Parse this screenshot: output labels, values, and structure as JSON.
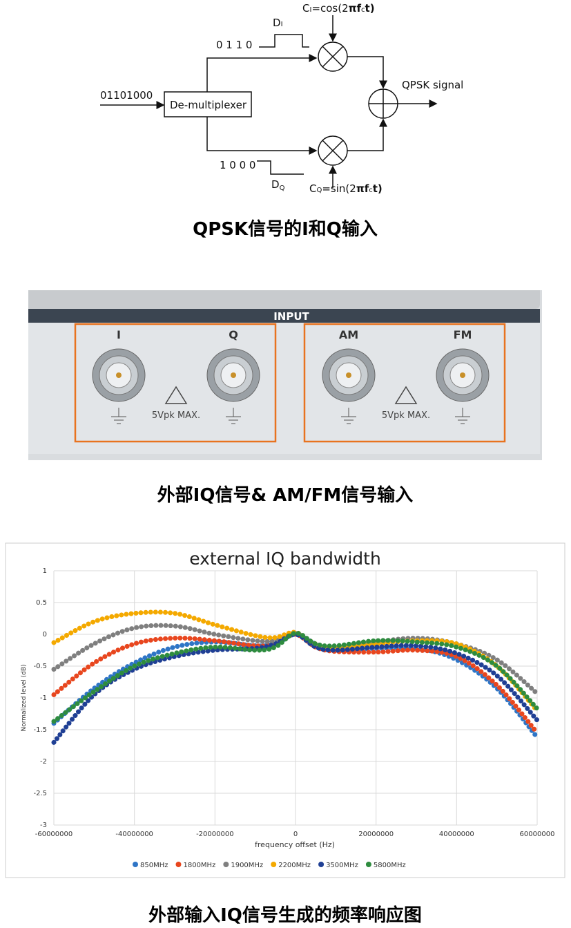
{
  "diagram": {
    "input_bits": "01101000",
    "demux": "De-multiplexer",
    "i_bits": "0 1 1 0",
    "q_bits": "1 0 0 0",
    "di": [
      "D",
      "I"
    ],
    "dq": [
      "D",
      "Q"
    ],
    "ci": [
      "C",
      "I",
      "=cos(2",
      "π",
      "f",
      "c",
      "t)"
    ],
    "cq": [
      "C",
      "Q",
      "=sin(2",
      "π",
      "f",
      "c",
      "t)"
    ],
    "output": "QPSK signal",
    "caption": "QPSK信号的I和Q输入"
  },
  "panel": {
    "header": "INPUT",
    "labels": [
      "I",
      "Q",
      "AM",
      "FM"
    ],
    "warnings": [
      "5Vpk  MAX.",
      "5Vpk  MAX."
    ],
    "caption": "外部IQ信号& AM/FM信号输入"
  },
  "chart_data": {
    "type": "line",
    "title": "external IQ bandwidth",
    "x_label": "frequency offset (Hz)",
    "y_label": "Normalized level (dB)",
    "x": [
      -60000000,
      -50000000,
      -40000000,
      -30000000,
      -20000000,
      -10000000,
      -5000000,
      0,
      5000000,
      10000000,
      20000000,
      30000000,
      40000000,
      50000000,
      60000000
    ],
    "series": [
      {
        "name": "850MHz",
        "color": "#2e75c6",
        "values": [
          -1.4,
          -0.85,
          -0.45,
          -0.2,
          -0.12,
          -0.18,
          -0.15,
          0.0,
          -0.15,
          -0.25,
          -0.22,
          -0.22,
          -0.4,
          -0.85,
          -1.62
        ]
      },
      {
        "name": "1800MHz",
        "color": "#e8461e",
        "values": [
          -0.95,
          -0.45,
          -0.15,
          -0.06,
          -0.1,
          -0.18,
          -0.15,
          0.0,
          -0.2,
          -0.27,
          -0.28,
          -0.25,
          -0.35,
          -0.8,
          -1.55
        ]
      },
      {
        "name": "1900MHz",
        "color": "#7f7f7f",
        "values": [
          -0.55,
          -0.15,
          0.1,
          0.13,
          0.0,
          -0.1,
          -0.1,
          0.02,
          -0.18,
          -0.2,
          -0.12,
          -0.06,
          -0.15,
          -0.4,
          -0.93
        ]
      },
      {
        "name": "2200MHz",
        "color": "#f4a900",
        "values": [
          -0.13,
          0.2,
          0.33,
          0.33,
          0.15,
          -0.02,
          -0.05,
          0.03,
          -0.15,
          -0.2,
          -0.15,
          -0.1,
          -0.15,
          -0.5,
          -1.2
        ]
      },
      {
        "name": "3500MHz",
        "color": "#1f3f94",
        "values": [
          -1.7,
          -0.95,
          -0.55,
          -0.35,
          -0.25,
          -0.22,
          -0.15,
          0.0,
          -0.2,
          -0.25,
          -0.2,
          -0.18,
          -0.3,
          -0.65,
          -1.35
        ]
      },
      {
        "name": "5800MHz",
        "color": "#2e8c3f",
        "values": [
          -1.37,
          -0.9,
          -0.5,
          -0.3,
          -0.2,
          -0.25,
          -0.2,
          0.02,
          -0.15,
          -0.18,
          -0.1,
          -0.12,
          -0.2,
          -0.5,
          -1.17
        ]
      }
    ],
    "xlim": [
      -60000000,
      60000000
    ],
    "ylim": [
      -3,
      1
    ],
    "xticks": [
      -60000000,
      -40000000,
      -20000000,
      0,
      20000000,
      40000000,
      60000000
    ],
    "yticks": [
      1,
      0.5,
      0,
      -0.5,
      -1,
      -1.5,
      -2,
      -2.5,
      -3
    ],
    "grid": true,
    "legend": "bottom",
    "caption": "外部输入IQ信号生成的频率响应图"
  }
}
